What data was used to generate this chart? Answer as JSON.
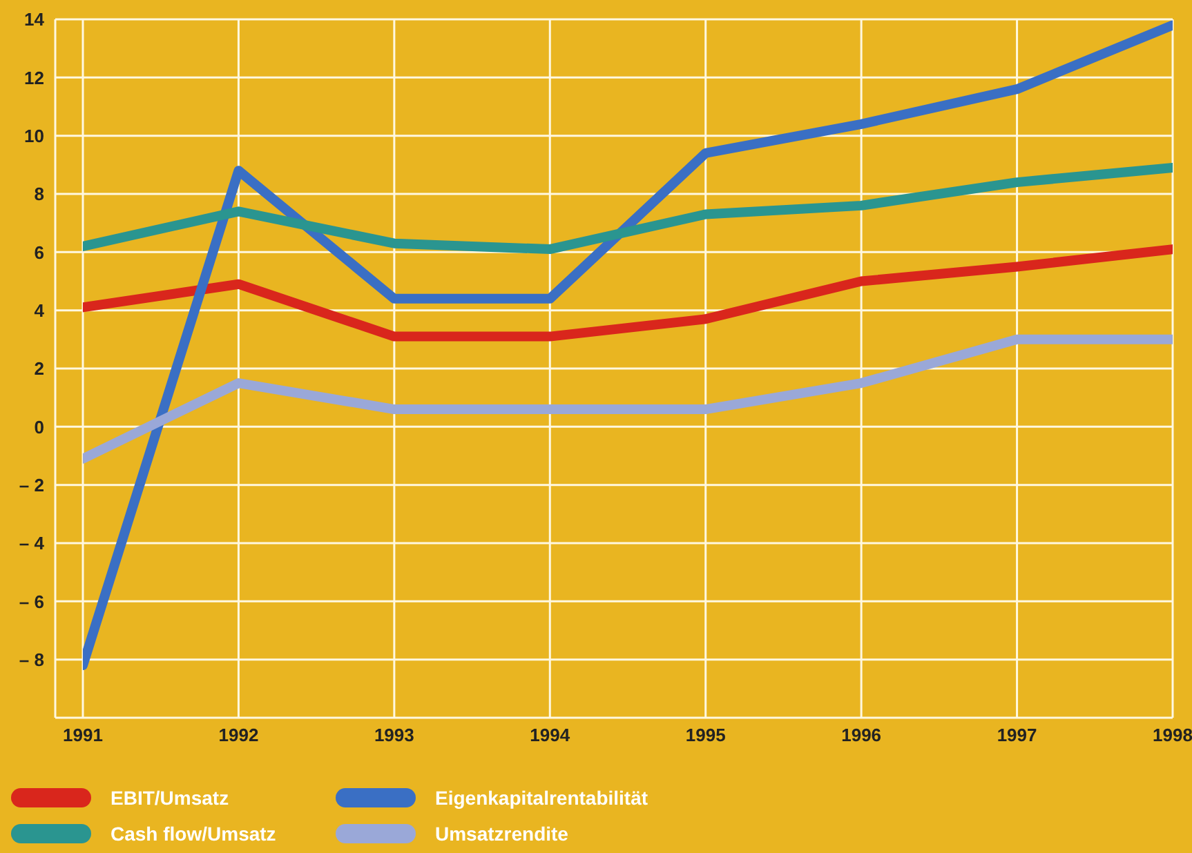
{
  "chart_data": {
    "type": "line",
    "x": [
      1991,
      1992,
      1993,
      1994,
      1995,
      1996,
      1997,
      1998
    ],
    "series": [
      {
        "name": "EBIT/Umsatz",
        "color": "#d9261c",
        "values": [
          4.1,
          4.9,
          3.1,
          3.1,
          3.7,
          5.0,
          5.5,
          6.1
        ]
      },
      {
        "name": "Eigenkapitalrentabilität",
        "color": "#3a6fc4",
        "values": [
          -8.2,
          8.8,
          4.4,
          4.4,
          9.4,
          10.4,
          11.6,
          13.8
        ]
      },
      {
        "name": "Cash flow/Umsatz",
        "color": "#2a9590",
        "values": [
          6.2,
          7.4,
          6.3,
          6.1,
          7.3,
          7.6,
          8.4,
          8.9
        ]
      },
      {
        "name": "Umsatzrendite",
        "color": "#9aa8d8",
        "values": [
          -1.1,
          1.5,
          0.6,
          0.6,
          0.6,
          1.5,
          3.0,
          3.0
        ]
      }
    ],
    "xlim": [
      1991,
      1998
    ],
    "xticks": [
      1991,
      1992,
      1993,
      1994,
      1995,
      1996,
      1997,
      1998
    ],
    "ylim": [
      -10,
      14
    ],
    "yticks": [
      {
        "value": -10,
        "label": null
      },
      {
        "value": -8,
        "label": "– 8"
      },
      {
        "value": -6,
        "label": "– 6"
      },
      {
        "value": -4,
        "label": "– 4"
      },
      {
        "value": -2,
        "label": "– 2"
      },
      0,
      2,
      4,
      6,
      8,
      10,
      12,
      14
    ],
    "grid": true,
    "legend": "bottom",
    "marker": "none",
    "line_style": "solid"
  }
}
